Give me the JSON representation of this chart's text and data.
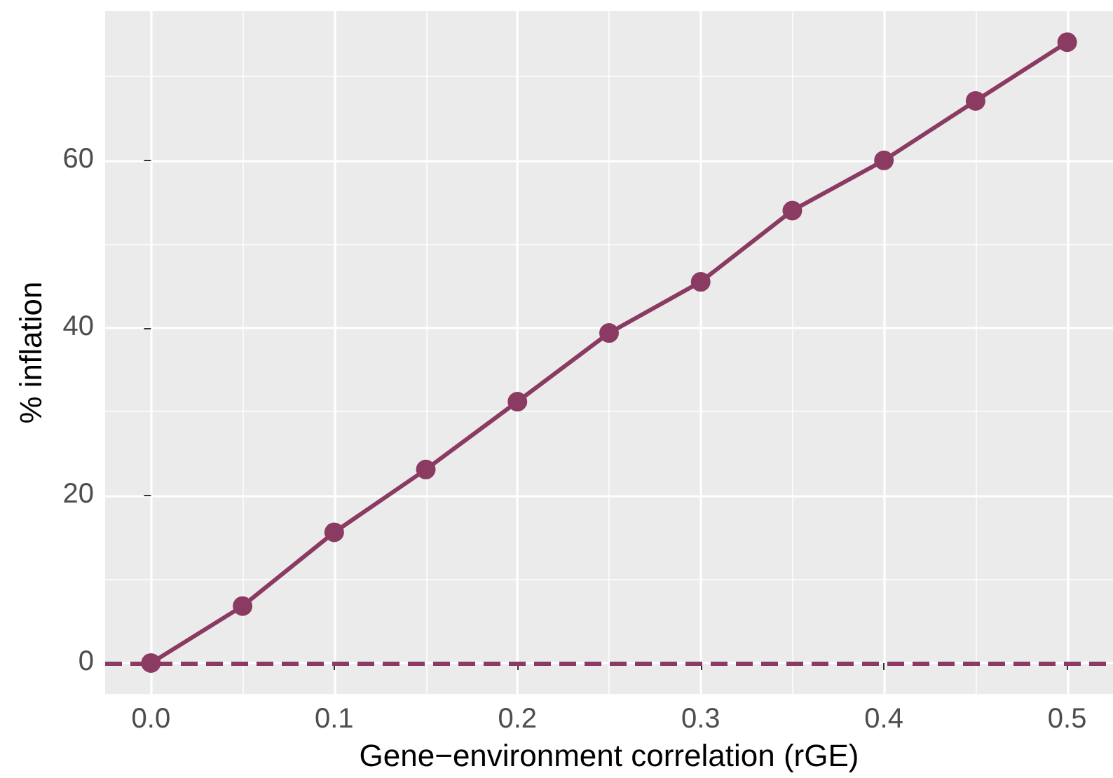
{
  "chart_data": {
    "type": "line",
    "xlabel": "Gene−environment correlation (rGE)",
    "ylabel": "% inflation",
    "x": [
      0,
      0.05,
      0.1,
      0.15,
      0.2,
      0.25,
      0.3,
      0.35,
      0.4,
      0.45,
      0.5
    ],
    "series": [
      {
        "color": "#8b3a62",
        "values": [
          0,
          6.8,
          15.6,
          23.1,
          31.2,
          39.4,
          45.5,
          54.0,
          60.0,
          67.1,
          74.1
        ]
      }
    ],
    "xlim": [
      -0.025,
      0.525
    ],
    "ylim": [
      -3.7,
      77.8
    ],
    "xticks": [
      {
        "value": 0,
        "label": "0.0"
      },
      {
        "value": 0.1,
        "label": "0.1"
      },
      {
        "value": 0.2,
        "label": "0.2"
      },
      {
        "value": 0.3,
        "label": "0.3"
      },
      {
        "value": 0.4,
        "label": "0.4"
      },
      {
        "value": 0.5,
        "label": "0.5"
      }
    ],
    "yticks": [
      0,
      20,
      40,
      60
    ],
    "ref_lines": [
      {
        "axis": "y",
        "value": 0,
        "color": "#8b3a62",
        "line_style": "dashed"
      }
    ],
    "grid": true,
    "marker": "circle",
    "line_style": "solid"
  }
}
